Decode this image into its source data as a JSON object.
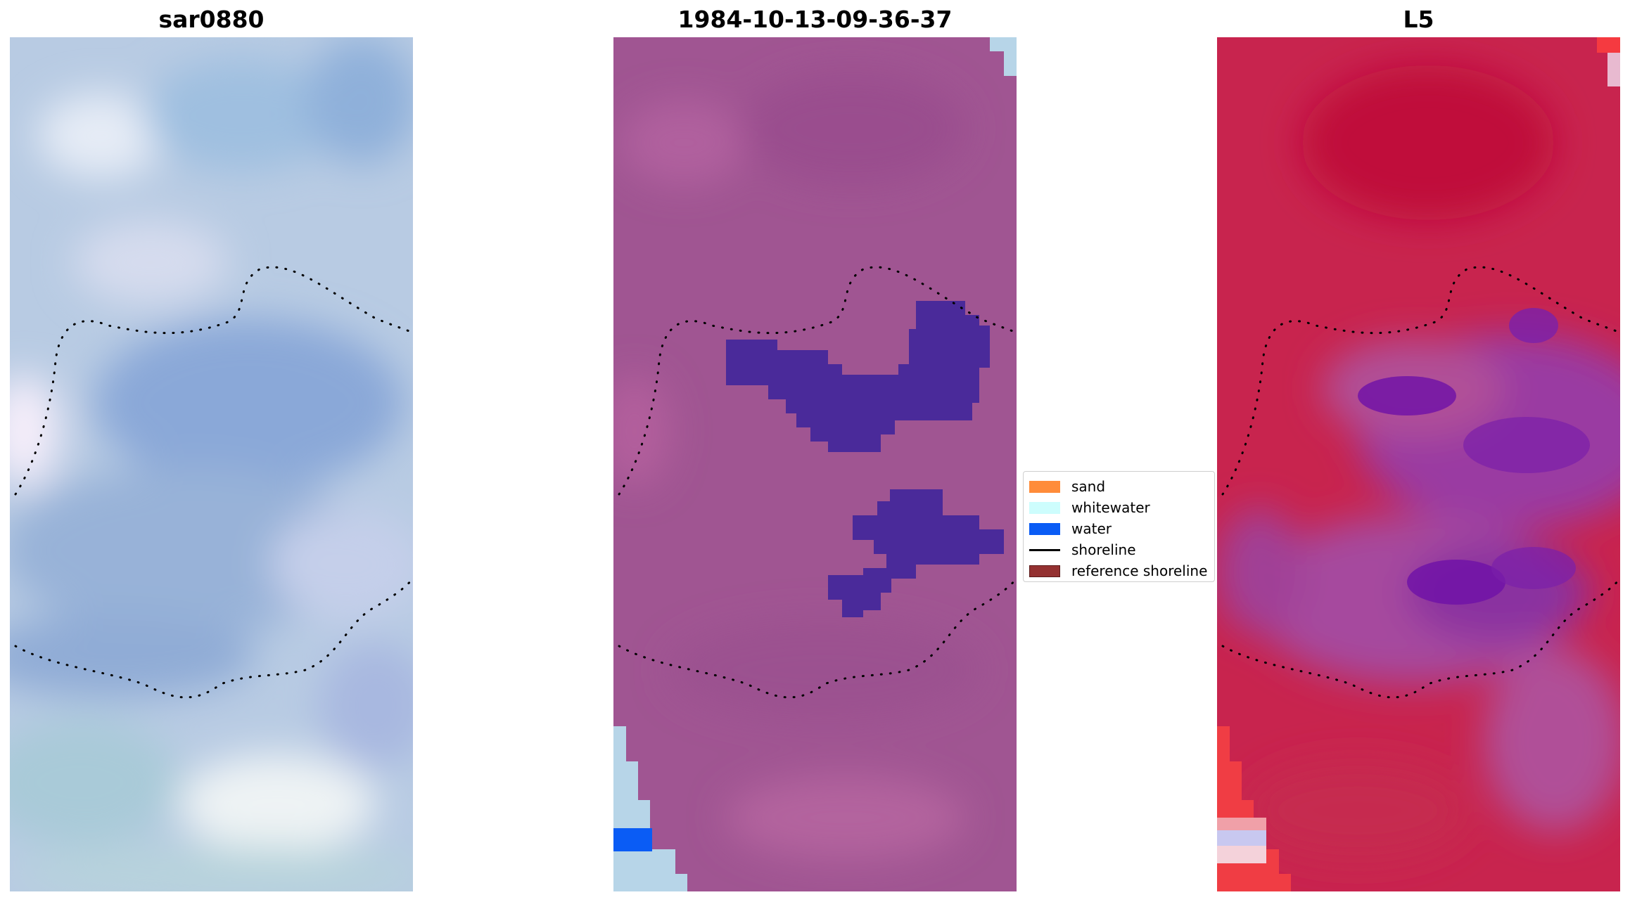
{
  "panels": [
    {
      "title": "sar0880"
    },
    {
      "title": "1984-10-13-09-36-37"
    },
    {
      "title": "L5"
    }
  ],
  "legend": {
    "items": [
      {
        "label": "sand",
        "color": "#ff8c3a",
        "kind": "patch"
      },
      {
        "label": "whitewater",
        "color": "#cdfdfd",
        "kind": "patch"
      },
      {
        "label": "water",
        "color": "#0a5cf5",
        "kind": "patch"
      },
      {
        "label": "shoreline",
        "color": "#000000",
        "kind": "line"
      },
      {
        "label": "reference shoreline",
        "color": "#943131",
        "kind": "patch"
      }
    ]
  },
  "colors": {
    "rgb_base": "#b4c8e2",
    "classified_base": "#a05592",
    "water_class_overlay": "#4a2a9a",
    "whitewater_corner": "#b7d5e8",
    "nir_base": "#c8244e",
    "nir_purple": "#8a3aa8"
  }
}
